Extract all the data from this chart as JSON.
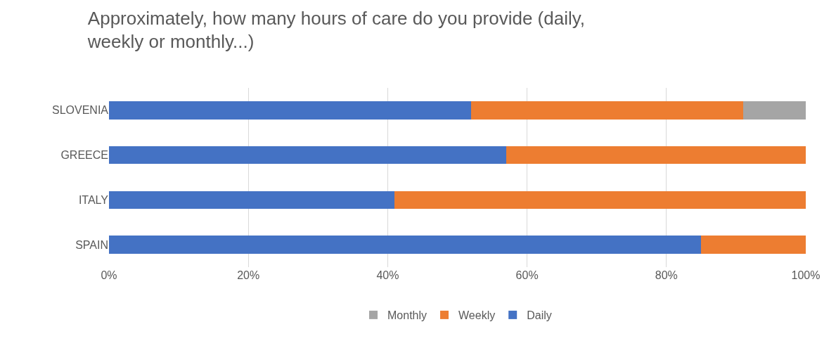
{
  "chart_data": {
    "type": "bar",
    "orientation": "horizontal",
    "stacked": true,
    "title": "Approximately, how many hours of care do you provide (daily, weekly or monthly...)",
    "categories": [
      "SLOVENIA",
      "GREECE",
      "ITALY",
      "SPAIN"
    ],
    "series": [
      {
        "name": "Daily",
        "color": "#4472c4",
        "values": [
          52,
          57,
          41,
          85
        ]
      },
      {
        "name": "Weekly",
        "color": "#ed7d31",
        "values": [
          39,
          43,
          59,
          15
        ]
      },
      {
        "name": "Monthly",
        "color": "#a5a5a5",
        "values": [
          9,
          0,
          0,
          0
        ]
      }
    ],
    "xlim": [
      0,
      100
    ],
    "xticks": [
      {
        "value": 0,
        "label": "0%"
      },
      {
        "value": 20,
        "label": "20%"
      },
      {
        "value": 40,
        "label": "40%"
      },
      {
        "value": 60,
        "label": "60%"
      },
      {
        "value": 80,
        "label": "80%"
      },
      {
        "value": 100,
        "label": "100%"
      }
    ],
    "grid": "x",
    "legend": "bottom"
  }
}
